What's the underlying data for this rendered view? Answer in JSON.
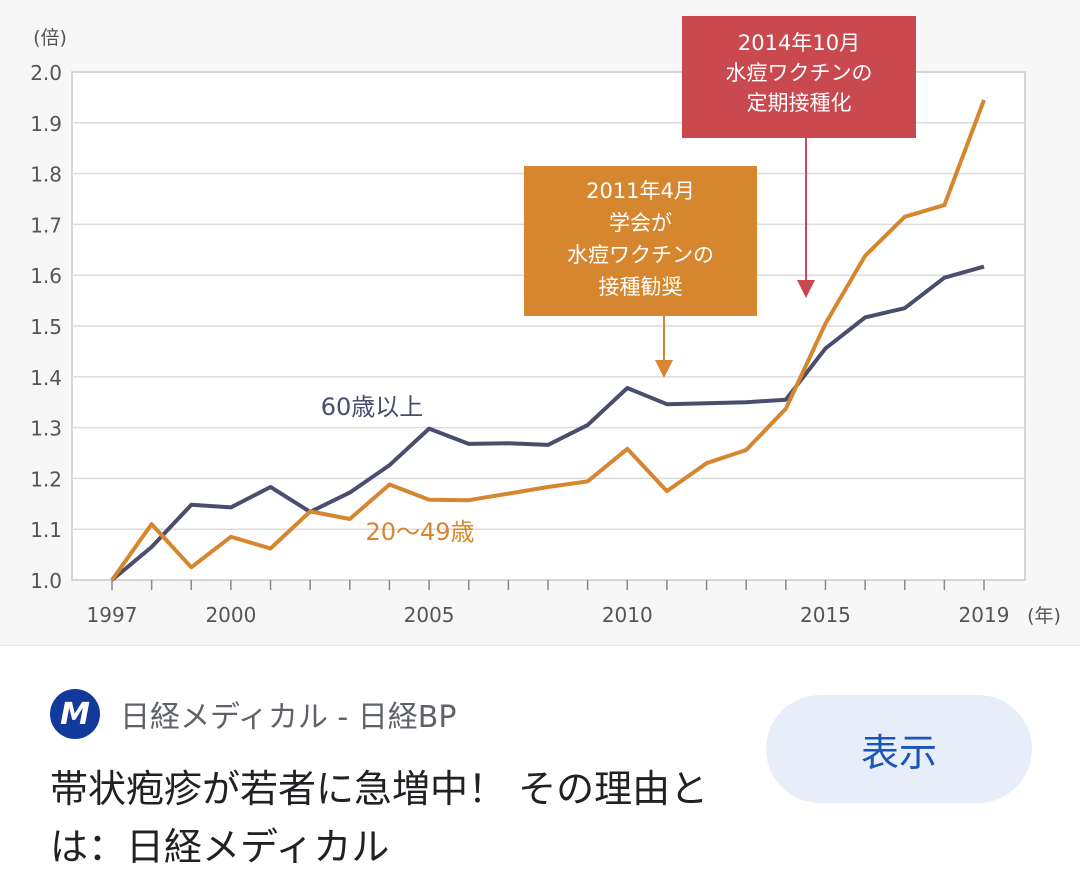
{
  "chart_data": {
    "type": "line",
    "x": [
      1997,
      1998,
      1999,
      2000,
      2001,
      2002,
      2003,
      2004,
      2005,
      2006,
      2007,
      2008,
      2009,
      2010,
      2011,
      2012,
      2013,
      2014,
      2015,
      2016,
      2017,
      2018,
      2019
    ],
    "x_ticks": [
      "1997",
      "2000",
      "2005",
      "2010",
      "2015",
      "2019"
    ],
    "x_unit": "(年)",
    "y_unit": "(倍)",
    "ylim": [
      1.0,
      2.0
    ],
    "y_ticks": [
      "1.0",
      "1.1",
      "1.2",
      "1.3",
      "1.4",
      "1.5",
      "1.6",
      "1.7",
      "1.8",
      "1.9",
      "2.0"
    ],
    "grid": true,
    "series": [
      {
        "name": "60歳以上",
        "color": "#4a4e6e",
        "values": [
          1.0,
          1.065,
          1.148,
          1.143,
          1.183,
          1.134,
          1.172,
          1.226,
          1.298,
          1.268,
          1.269,
          1.266,
          1.305,
          1.378,
          1.346,
          1.348,
          1.35,
          1.355,
          1.456,
          1.517,
          1.535,
          1.595,
          1.617
        ]
      },
      {
        "name": "20〜49歳",
        "color": "#d5862e",
        "values": [
          1.0,
          1.11,
          1.025,
          1.085,
          1.062,
          1.135,
          1.12,
          1.188,
          1.158,
          1.157,
          1.17,
          1.183,
          1.194,
          1.258,
          1.175,
          1.23,
          1.256,
          1.337,
          1.505,
          1.638,
          1.715,
          1.738,
          1.945
        ]
      }
    ],
    "annotations": [
      {
        "lines": [
          "2011年4月",
          "学会が",
          "水痘ワクチンの",
          "接種勧奨"
        ],
        "color": "#d5862e",
        "points_to_year": 2011
      },
      {
        "lines": [
          "2014年10月",
          "水痘ワクチンの",
          "定期接種化"
        ],
        "color": "#c9494f",
        "points_to_year": 2014.5
      }
    ]
  },
  "result": {
    "source_logo_letter": "M",
    "source_name": "日経メディカル - 日経BP",
    "title": "帯状疱疹が若者に急増中！ その理由とは：日経メディカル",
    "open_button_label": "表示"
  }
}
